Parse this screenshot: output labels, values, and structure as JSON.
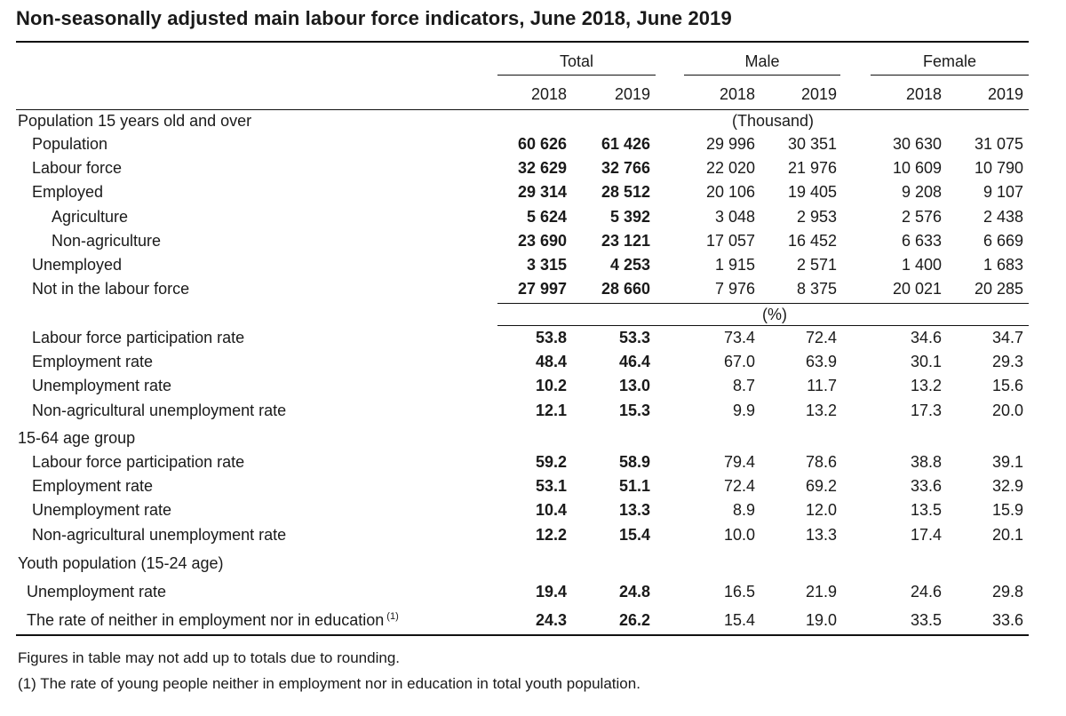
{
  "title": "Non-seasonally adjusted main labour force indicators, June 2018, June 2019",
  "groups": [
    "Total",
    "Male",
    "Female"
  ],
  "years": [
    "2018",
    "2019",
    "2018",
    "2019",
    "2018",
    "2019"
  ],
  "units": {
    "thousand": "(Thousand)",
    "percent": "(%)"
  },
  "sections": {
    "population": "Population 15 years old and over",
    "age_15_64": "15-64 age group",
    "youth": "Youth population (15-24 age)"
  },
  "thousand_rows": [
    {
      "label": "Population",
      "values": [
        "60 626",
        "61 426",
        "29 996",
        "30 351",
        "30 630",
        "31 075"
      ]
    },
    {
      "label": "Labour force",
      "values": [
        "32 629",
        "32 766",
        "22 020",
        "21 976",
        "10 609",
        "10 790"
      ]
    },
    {
      "label": "Employed",
      "values": [
        "29 314",
        "28 512",
        "20 106",
        "19 405",
        "9 208",
        "9 107"
      ]
    },
    {
      "label": "Agriculture",
      "values": [
        "5 624",
        "5 392",
        "3 048",
        "2 953",
        "2 576",
        "2 438"
      ]
    },
    {
      "label": "Non-agriculture",
      "values": [
        "23 690",
        "23 121",
        "17 057",
        "16 452",
        "6 633",
        "6 669"
      ]
    },
    {
      "label": "Unemployed",
      "values": [
        "3 315",
        "4 253",
        "1 915",
        "2 571",
        "1 400",
        "1 683"
      ]
    },
    {
      "label": "Not in the labour force",
      "values": [
        "27 997",
        "28 660",
        "7 976",
        "8 375",
        "20 021",
        "20 285"
      ]
    }
  ],
  "rate_rows": [
    {
      "label": "Labour force participation rate",
      "values": [
        "53.8",
        "53.3",
        "73.4",
        "72.4",
        "34.6",
        "34.7"
      ]
    },
    {
      "label": "Employment rate",
      "values": [
        "48.4",
        "46.4",
        "67.0",
        "63.9",
        "30.1",
        "29.3"
      ]
    },
    {
      "label": "Unemployment rate",
      "values": [
        "10.2",
        "13.0",
        "8.7",
        "11.7",
        "13.2",
        "15.6"
      ]
    },
    {
      "label": "Non-agricultural unemployment rate",
      "values": [
        "12.1",
        "15.3",
        "9.9",
        "13.2",
        "17.3",
        "20.0"
      ]
    }
  ],
  "age_rows": [
    {
      "label": "Labour force participation rate",
      "values": [
        "59.2",
        "58.9",
        "79.4",
        "78.6",
        "38.8",
        "39.1"
      ]
    },
    {
      "label": "Employment rate",
      "values": [
        "53.1",
        "51.1",
        "72.4",
        "69.2",
        "33.6",
        "32.9"
      ]
    },
    {
      "label": "Unemployment rate",
      "values": [
        "10.4",
        "13.3",
        "8.9",
        "12.0",
        "13.5",
        "15.9"
      ]
    },
    {
      "label": "Non-agricultural unemployment rate",
      "values": [
        "12.2",
        "15.4",
        "10.0",
        "13.3",
        "17.4",
        "20.1"
      ]
    }
  ],
  "youth_rows": [
    {
      "label": "Unemployment rate",
      "values": [
        "19.4",
        "24.8",
        "16.5",
        "21.9",
        "24.6",
        "29.8"
      ]
    },
    {
      "label": "The rate of neither in employment nor in education",
      "sup": "(1)",
      "values": [
        "24.3",
        "26.2",
        "15.4",
        "19.0",
        "33.5",
        "33.6"
      ]
    }
  ],
  "footnotes": [
    "Figures in table may not add up to totals due to rounding.",
    "(1) The rate of young people neither in employment nor in education in total youth population."
  ]
}
